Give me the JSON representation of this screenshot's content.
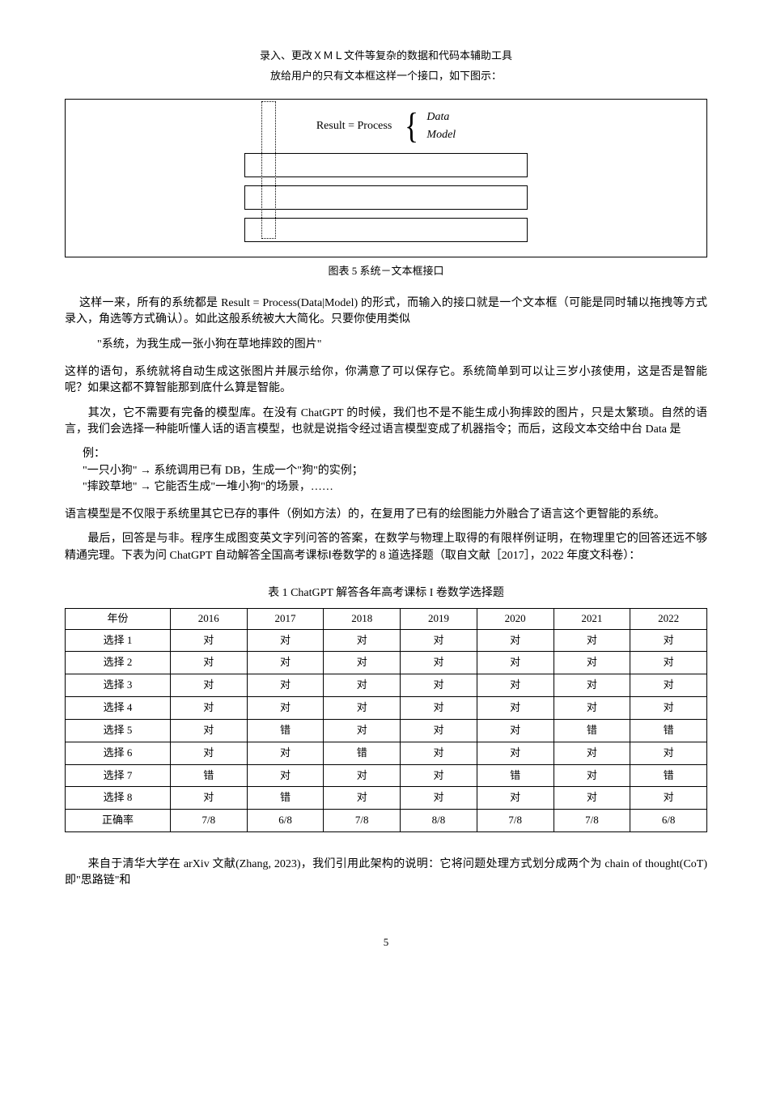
{
  "header": {
    "line1": "录入、更改ＸＭＬ文件等复杂的数据和代码本辅助工具",
    "line2": "放给用户的只有文本框这样一个接口，如下图示："
  },
  "figure": {
    "eq_prefix": "Result = Process",
    "eq_opt1": "Data",
    "eq_opt2": "Model",
    "caption": "图表 5 系统－文本框接口"
  },
  "para1_a": "这样一来，所有的系统都是 Result = Process(Data|Model) 的形式，而输入的接口就是一个文本框（可能是同时辅以拖拽等方式录入，角选等方式确认）。如此这般系统被大大简化。只要你使用类似",
  "quote": "\"系统，为我生成一张小狗在草地摔跤的图片\"",
  "para1_b": "这样的语句，系统就将自动生成这张图片并展示给你，你满意了可以保存它。系统简单到可以让三岁小孩使用，这是否是智能呢？如果这都不算智能那到底什么算是智能。",
  "para2": "　　其次，它不需要有完备的模型库。在没有 ChatGPT 的时候，我们也不是不能生成小狗摔跤的图片，只是太繁琐。自然的语言，我们会选择一种能听懂人话的语言模型，也就是说指令经过语言模型变成了机器指令；而后，这段文本交给中台 Data 是",
  "example_title": "例：",
  "example_line1": "\"一只小狗\" → 系统调用已有 DB，生成一个\"狗\"的实例；",
  "example_line2": "\"摔跤草地\" → 它能否生成\"一堆小狗\"的场景，……",
  "para3": "语言模型是不仅限于系统里其它已存的事件（例如方法）的，在复用了已有的绘图能力外融合了语言这个更智能的系统。",
  "para4": "　　最后，回答是与非。程序生成图变英文字列问答的答案，在数学与物理上取得的有限样例证明，在物理里它的回答还远不够精通完理。下表为问 ChatGPT 自动解答全国高考课标Ⅰ卷数学的 8 道选择题（取自文献［2017］，2022 年度文科卷）：",
  "table": {
    "title": "表 1  ChatGPT 解答各年高考课标 I 卷数学选择题",
    "columns": [
      "年份",
      "2016",
      "2017",
      "2018",
      "2019",
      "2020",
      "2021",
      "2022"
    ],
    "rows": [
      [
        "选择 1",
        "对",
        "对",
        "对",
        "对",
        "对",
        "对",
        "对"
      ],
      [
        "选择 2",
        "对",
        "对",
        "对",
        "对",
        "对",
        "对",
        "对"
      ],
      [
        "选择 3",
        "对",
        "对",
        "对",
        "对",
        "对",
        "对",
        "对"
      ],
      [
        "选择 4",
        "对",
        "对",
        "对",
        "对",
        "对",
        "对",
        "对"
      ],
      [
        "选择 5",
        "对",
        "错",
        "对",
        "对",
        "对",
        "错",
        "错"
      ],
      [
        "选择 6",
        "对",
        "对",
        "错",
        "对",
        "对",
        "对",
        "对"
      ],
      [
        "选择 7",
        "错",
        "对",
        "对",
        "对",
        "错",
        "对",
        "错"
      ],
      [
        "选择 8",
        "对",
        "错",
        "对",
        "对",
        "对",
        "对",
        "对"
      ],
      [
        "正确率",
        "7/8",
        "6/8",
        "7/8",
        "8/8",
        "7/8",
        "7/8",
        "6/8"
      ]
    ]
  },
  "after1": "　　来自于清华大学在 arXiv 文献(Zhang, 2023)，我们引用此架构的说明：它将问题处理方式划分成两个为 chain of thought(CoT) 即\"思路链\"和",
  "pagenum": "5"
}
